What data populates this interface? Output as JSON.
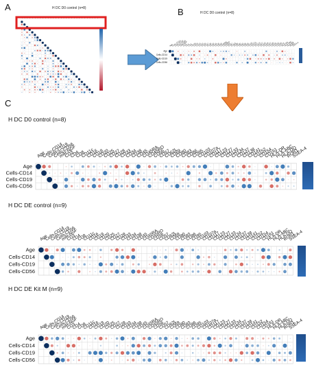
{
  "panel_labels": {
    "a": "A",
    "b": "B",
    "c": "C"
  },
  "panel_a": {
    "title": "H DC D0 control (n=8)"
  },
  "panel_b": {
    "title": "H DC D0 control (n=8)"
  },
  "columns": [
    "Age",
    "Cells-CD14",
    "Cells-CD19",
    "Cells-CD56",
    "miR-NGF",
    "CD3",
    "CD4",
    "CD8",
    "CD11c",
    "CD16",
    "CD19",
    "CD20",
    "CD25",
    "CD27",
    "CD28",
    "CD33",
    "CD34",
    "CD38",
    "CD45",
    "CD45RA",
    "CD45RO",
    "CD56",
    "CD57",
    "CD62L",
    "CD69",
    "CD80",
    "CD83",
    "CD86",
    "CD95",
    "CD103",
    "CD107a",
    "CD117",
    "CD123",
    "CD127",
    "CD133",
    "CD134",
    "CD137",
    "CD138",
    "CD141",
    "CD152",
    "CD154",
    "CD161",
    "HLA-DR",
    "HLA-ABC",
    "HLA-DQ",
    "ROR1",
    "SSEA-4"
  ],
  "heatmaps": [
    {
      "title": "H DC  D0 control (n=8)",
      "rows": [
        "Age",
        "Cells-CD14",
        "Cells-CD19",
        "Cells-CD56"
      ]
    },
    {
      "title": "H DC  DE control (n=9)",
      "rows": [
        "Age",
        "Cells-CD14",
        "Cells-CD19",
        "Cells-CD56"
      ]
    },
    {
      "title": "H DC  DE Kit M (n=9)",
      "rows": [
        "Age",
        "Cells-CD14",
        "Cells-CD19",
        "Cells-CD56"
      ]
    }
  ],
  "colors": {
    "positive": "#2166ac",
    "negative": "#b2182b",
    "highlight_box": "#e02020",
    "arrow_blue": "#5b9bd5",
    "arrow_orange": "#ed7d31"
  }
}
